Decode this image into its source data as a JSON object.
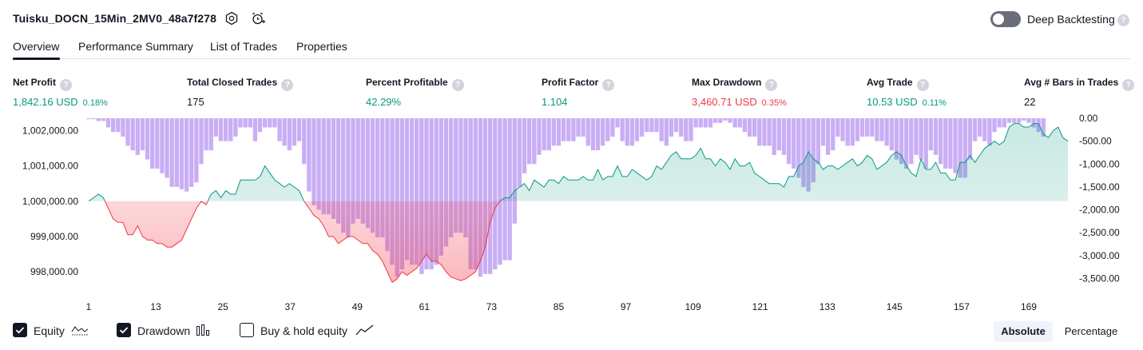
{
  "header": {
    "title": "Tuisku_DOCN_15Min_2MV0_48a7f278",
    "settings_icon": "gear-hexagon-icon",
    "alert_icon": "alarm-clock-add-icon",
    "deep_backtesting_label": "Deep Backtesting",
    "deep_backtesting_on": false
  },
  "tabs": [
    {
      "label": "Overview",
      "active": true
    },
    {
      "label": "Performance Summary",
      "active": false
    },
    {
      "label": "List of Trades",
      "active": false
    },
    {
      "label": "Properties",
      "active": false
    }
  ],
  "metrics": [
    {
      "label": "Net Profit",
      "value": "1,842.16 USD",
      "pct": "0.18%",
      "tone": "pos"
    },
    {
      "label": "Total Closed Trades",
      "value": "175",
      "pct": "",
      "tone": "plain"
    },
    {
      "label": "Percent Profitable",
      "value": "42.29%",
      "pct": "",
      "tone": "pos"
    },
    {
      "label": "Profit Factor",
      "value": "1.104",
      "pct": "",
      "tone": "pos"
    },
    {
      "label": "Max Drawdown",
      "value": "3,460.71 USD",
      "pct": "0.35%",
      "tone": "neg"
    },
    {
      "label": "Avg Trade",
      "value": "10.53 USD",
      "pct": "0.11%",
      "tone": "pos"
    },
    {
      "label": "Avg # Bars in Trades",
      "value": "22",
      "pct": "",
      "tone": "plain"
    }
  ],
  "chart_data": {
    "type": "area",
    "baseline": 1000000,
    "left_axis": {
      "ticks": [
        "1,002,000.00",
        "1,001,000.00",
        "1,000,000.00",
        "999,000.00",
        "998,000.00"
      ],
      "values": [
        1002000,
        1001000,
        1000000,
        999000,
        998000
      ],
      "range": [
        997550,
        1002350
      ]
    },
    "right_axis": {
      "ticks": [
        "0.00",
        "-500.00",
        "-1,000.00",
        "-1,500.00",
        "-2,000.00",
        "-2,500.00",
        "-3,000.00",
        "-3,500.00"
      ],
      "values": [
        0,
        -500,
        -1000,
        -1500,
        -2000,
        -2500,
        -3000,
        -3500
      ],
      "range": [
        -3700,
        0
      ]
    },
    "x_ticks": [
      "1",
      "13",
      "25",
      "37",
      "49",
      "61",
      "73",
      "85",
      "97",
      "109",
      "121",
      "133",
      "145",
      "157",
      "169"
    ],
    "x_range": [
      1,
      176
    ],
    "colors": {
      "equity_up": "#089981",
      "equity_down": "#f23645",
      "drawdown_bar": "#c9aef5"
    },
    "series": [
      {
        "name": "Equity",
        "visible": true,
        "values": [
          1000000,
          1000100,
          1000200,
          1000100,
          999800,
          999500,
          999400,
          999400,
          999050,
          999050,
          999300,
          999000,
          998900,
          998900,
          998800,
          998800,
          998700,
          998700,
          998800,
          998900,
          999200,
          999500,
          999800,
          1000000,
          999900,
          1000200,
          1000300,
          1000100,
          1000300,
          1000200,
          1000200,
          1000600,
          1000600,
          1000600,
          1000600,
          1000700,
          1001000,
          1000800,
          1000600,
          1000500,
          1000400,
          1000500,
          1000400,
          1000300,
          1000000,
          999800,
          999600,
          999500,
          999300,
          999000,
          999000,
          998800,
          998900,
          999000,
          999000,
          998900,
          998800,
          998800,
          998600,
          998500,
          998300,
          998000,
          997700,
          997800,
          998000,
          997900,
          998000,
          998100,
          998300,
          998500,
          998300,
          998300,
          998200,
          998000,
          997850,
          997800,
          997750,
          997800,
          997900,
          998000,
          998300,
          998700,
          999400,
          999800,
          1000000,
          1000100,
          1000100,
          1000300,
          1000400,
          1000500,
          1000300,
          1000600,
          1000500,
          1000400,
          1000600,
          1000600,
          1000500,
          1000700,
          1000600,
          1000600,
          1000600,
          1000700,
          1000600,
          1000600,
          1000900,
          1000600,
          1000700,
          1000700,
          1001000,
          1000700,
          1000700,
          1000900,
          1000800,
          1000700,
          1000600,
          1000700,
          1001000,
          1000900,
          1001100,
          1001300,
          1001400,
          1001200,
          1001200,
          1001200,
          1001300,
          1001500,
          1001200,
          1001200,
          1001000,
          1001200,
          1001100,
          1000900,
          1001200,
          1001000,
          1001000,
          1001100,
          1000800,
          1000700,
          1000600,
          1000500,
          1000500,
          1000500,
          1000400,
          1000700,
          1000700,
          1001000,
          1001100,
          1001400,
          1001200,
          1001100,
          1000900,
          1001000,
          1001000,
          1000900,
          1001000,
          1001100,
          1001200,
          1001000,
          1001100,
          1001300,
          1001200,
          1000900,
          1001000,
          1001100,
          1001300,
          1001400,
          1001300,
          1001000,
          1000800,
          1000700,
          1001200,
          1000900,
          1000900,
          1001100,
          1000800,
          1000800,
          1000600,
          1000600,
          1001100,
          1001100,
          1001300,
          1001100,
          1001300,
          1001500,
          1001600,
          1001700,
          1001600,
          1001700,
          1002100,
          1002200,
          1002200,
          1002100,
          1002100,
          1002200,
          1002200,
          1001900,
          1001800,
          1002000,
          1002100,
          1001800,
          1001700
        ]
      },
      {
        "name": "Drawdown",
        "visible": true,
        "values": [
          -20,
          -20,
          -60,
          -60,
          -200,
          -300,
          -300,
          -400,
          -600,
          -700,
          -800,
          -700,
          -900,
          -1100,
          -1100,
          -1200,
          -1300,
          -1500,
          -1500,
          -1550,
          -1600,
          -1500,
          -1400,
          -1000,
          -700,
          -700,
          -400,
          -500,
          -500,
          -500,
          -400,
          -200,
          -200,
          -200,
          -500,
          -300,
          -200,
          -200,
          -200,
          -500,
          -600,
          -700,
          -600,
          -500,
          -1000,
          -1600,
          -1900,
          -2000,
          -2100,
          -2100,
          -2200,
          -2300,
          -2500,
          -2600,
          -2300,
          -2200,
          -2300,
          -2400,
          -2500,
          -2600,
          -2600,
          -2900,
          -3200,
          -3460,
          -3300,
          -3100,
          -3200,
          -3200,
          -3400,
          -3300,
          -3300,
          -3200,
          -3000,
          -2800,
          -2600,
          -2500,
          -2500,
          -2600,
          -3300,
          -3300,
          -3460,
          -3400,
          -3400,
          -3300,
          -3200,
          -3100,
          -3100,
          -2300,
          -1500,
          -1200,
          -1000,
          -1000,
          -800,
          -700,
          -700,
          -600,
          -600,
          -500,
          -500,
          -500,
          -400,
          -400,
          -600,
          -700,
          -700,
          -600,
          -500,
          -400,
          -200,
          -500,
          -600,
          -600,
          -500,
          -400,
          -300,
          -300,
          -300,
          -500,
          -600,
          -400,
          -300,
          -400,
          -500,
          -500,
          -200,
          -200,
          -200,
          -200,
          -100,
          -100,
          -50,
          -100,
          -200,
          -200,
          -300,
          -400,
          -400,
          -600,
          -600,
          -600,
          -800,
          -700,
          -800,
          -1000,
          -1100,
          -1300,
          -1500,
          -1600,
          -1400,
          -1000,
          -600,
          -800,
          -700,
          -400,
          -500,
          -600,
          -600,
          -500,
          -400,
          -400,
          -400,
          -500,
          -500,
          -600,
          -700,
          -900,
          -1000,
          -1100,
          -1000,
          -800,
          -900,
          -1100,
          -700,
          -800,
          -1000,
          -1100,
          -1100,
          -1200,
          -1300,
          -1300,
          -900,
          -500,
          -400,
          -500,
          -600,
          -300,
          -200,
          -200,
          -100,
          -100,
          -100,
          -50,
          -100,
          -200,
          -300,
          -400
        ]
      }
    ]
  },
  "legend": [
    {
      "label": "Equity",
      "checked": true,
      "icon": "equity-area-icon"
    },
    {
      "label": "Drawdown",
      "checked": true,
      "icon": "drawdown-bars-icon"
    },
    {
      "label": "Buy & hold equity",
      "checked": false,
      "icon": "trend-line-icon"
    }
  ],
  "scale_toggle": {
    "options": [
      "Absolute",
      "Percentage"
    ],
    "selected": "Absolute"
  }
}
